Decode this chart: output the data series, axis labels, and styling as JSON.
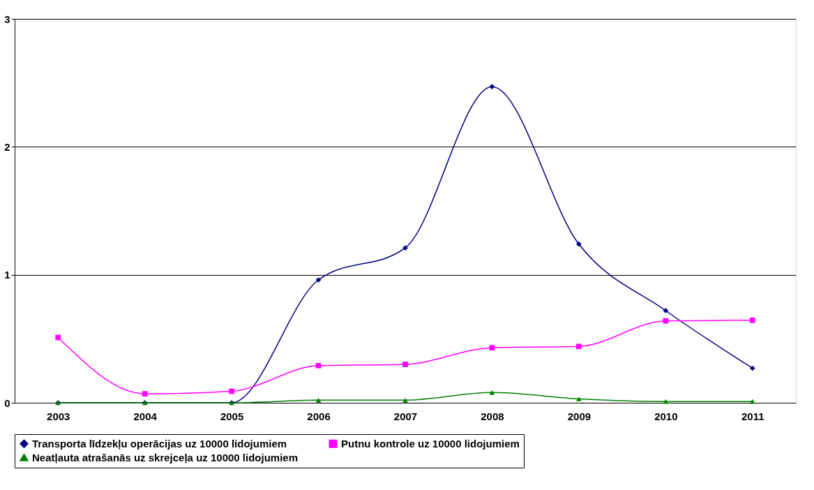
{
  "chart_data": {
    "type": "line",
    "categories": [
      "2003",
      "2004",
      "2005",
      "2006",
      "2007",
      "2008",
      "2009",
      "2010",
      "2011"
    ],
    "series": [
      {
        "name": "Transporta līdzekļu operācijas uz 10000 lidojumiem",
        "color": "#000080",
        "marker": "diamond",
        "values": [
          0,
          0,
          0,
          0.96,
          1.21,
          2.47,
          1.24,
          0.72,
          0.27
        ]
      },
      {
        "name": "Putnu kontrole uz 10000 lidojumiem",
        "color": "#ff00ff",
        "marker": "square",
        "values": [
          0.51,
          0.07,
          0.09,
          0.29,
          0.3,
          0.43,
          0.44,
          0.64,
          0.645
        ]
      },
      {
        "name": "Neatļauta atrašanās uz skrejceļa uz 10000 lidojumiem",
        "color": "#008000",
        "marker": "triangle",
        "values": [
          0,
          0,
          0,
          0.02,
          0.02,
          0.08,
          0.03,
          0.01,
          0.01
        ]
      }
    ],
    "ylim": [
      0,
      3
    ],
    "yticks": [
      0,
      1,
      2,
      3
    ],
    "grid": "y",
    "legend": "bottom",
    "line_style": "solid"
  }
}
